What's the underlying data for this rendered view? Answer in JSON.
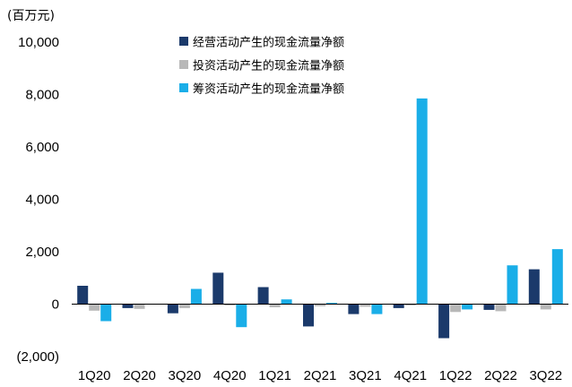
{
  "chart_data": {
    "type": "bar",
    "unit_label": "(百万元)",
    "categories": [
      "1Q20",
      "2Q20",
      "3Q20",
      "4Q20",
      "1Q21",
      "2Q21",
      "3Q21",
      "4Q21",
      "1Q22",
      "2Q22",
      "3Q22"
    ],
    "series": [
      {
        "name": "经营活动产生的现金流量净额",
        "color": "#1b3a6b",
        "values": [
          700,
          -150,
          -350,
          1200,
          650,
          -850,
          -380,
          -150,
          -1300,
          -220,
          1330
        ]
      },
      {
        "name": "投资活动产生的现金流量净额",
        "color": "#b8b8b8",
        "values": [
          -250,
          -180,
          -150,
          -50,
          -120,
          -80,
          -100,
          -50,
          -300,
          -270,
          -200
        ]
      },
      {
        "name": "筹资活动产生的现金流量净额",
        "color": "#1aaee8",
        "values": [
          -650,
          0,
          580,
          -880,
          180,
          50,
          -380,
          7850,
          -200,
          1480,
          2100
        ]
      }
    ],
    "yticks": [
      "10,000",
      "8,000",
      "6,000",
      "4,000",
      "2,000",
      "0",
      "(2,000)"
    ],
    "ytick_values": [
      10000,
      8000,
      6000,
      4000,
      2000,
      0,
      -2000
    ],
    "ylim": [
      -2000,
      10000
    ],
    "grid": false,
    "legend_position": "top"
  }
}
